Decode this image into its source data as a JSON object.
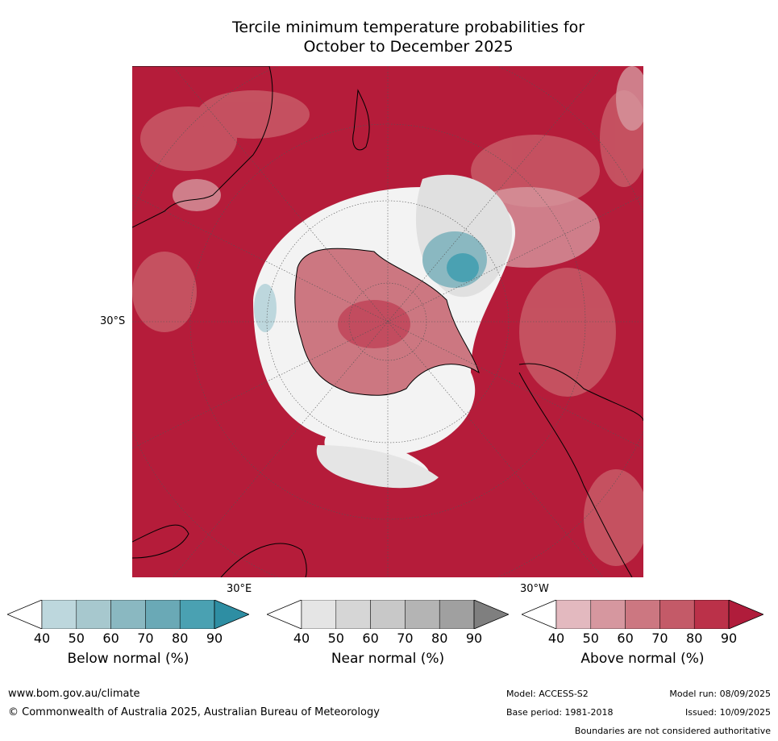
{
  "title_line1": "Tercile minimum temperature probabilities for",
  "title_line2": "October to December 2025",
  "map": {
    "lat_label": "30°S",
    "lon_label_east": "30°E",
    "lon_label_west": "30°W"
  },
  "colorbars": [
    {
      "label": "Below normal (%)",
      "ticks": [
        "40",
        "50",
        "60",
        "70",
        "80",
        "90"
      ],
      "colors": [
        "#ffffff",
        "#bdd7dd",
        "#a7c8ce",
        "#8ab8c1",
        "#6aa9b6",
        "#4aa1b2",
        "#2e8ea3"
      ]
    },
    {
      "label": "Near normal (%)",
      "ticks": [
        "40",
        "50",
        "60",
        "70",
        "80",
        "90"
      ],
      "colors": [
        "#ffffff",
        "#e5e5e5",
        "#d6d6d6",
        "#c8c8c8",
        "#b4b4b4",
        "#a0a0a0",
        "#7f7f7f"
      ]
    },
    {
      "label": "Above normal (%)",
      "ticks": [
        "40",
        "50",
        "60",
        "70",
        "80",
        "90"
      ],
      "colors": [
        "#ffffff",
        "#e3b9bf",
        "#d6979f",
        "#cc7781",
        "#c45a68",
        "#bb3149",
        "#b01c3b"
      ]
    }
  ],
  "footer": {
    "website": "www.bom.gov.au/climate",
    "copyright": "© Commonwealth of Australia 2025, Australian Bureau of Meteorology",
    "model": "Model: ACCESS-S2",
    "base_period": "Base period: 1981-2018",
    "model_run": "Model run: 08/09/2025",
    "issued": "Issued: 10/09/2025",
    "disclaimer": "Boundaries are not considered authoritative"
  }
}
